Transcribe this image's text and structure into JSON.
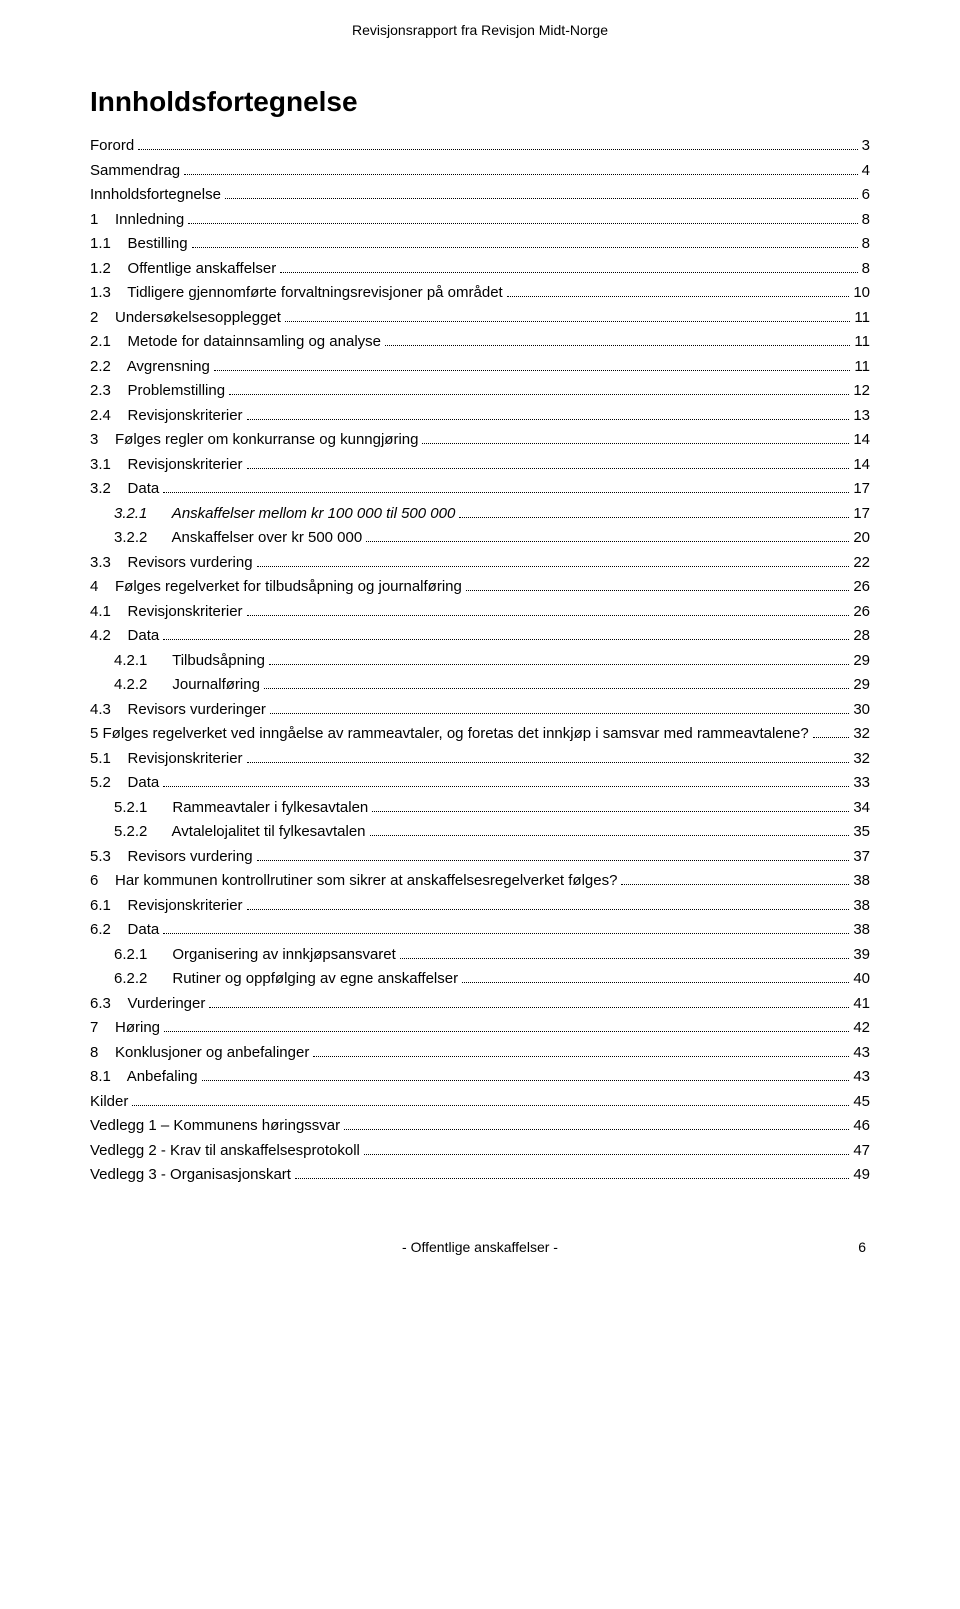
{
  "header": "Revisjonsrapport fra Revisjon Midt-Norge",
  "title": "Innholdsfortegnelse",
  "footer_center": "- Offentlige anskaffelser -",
  "footer_page": "6",
  "toc": [
    {
      "indent": 0,
      "label": "Forord",
      "page": "3"
    },
    {
      "indent": 0,
      "label": "Sammendrag",
      "page": "4"
    },
    {
      "indent": 0,
      "label": "Innholdsfortegnelse",
      "page": "6"
    },
    {
      "indent": 0,
      "label": "1    Innledning",
      "page": "8"
    },
    {
      "indent": 0,
      "label": "1.1    Bestilling",
      "page": "8"
    },
    {
      "indent": 0,
      "label": "1.2    Offentlige anskaffelser",
      "page": "8"
    },
    {
      "indent": 0,
      "label": "1.3    Tidligere gjennomførte forvaltningsrevisjoner på området",
      "page": "10"
    },
    {
      "indent": 0,
      "label": "2    Undersøkelsesopplegget",
      "page": "11"
    },
    {
      "indent": 0,
      "label": "2.1    Metode for datainnsamling og analyse",
      "page": "11"
    },
    {
      "indent": 0,
      "label": "2.2    Avgrensning",
      "page": "11"
    },
    {
      "indent": 0,
      "label": "2.3    Problemstilling",
      "page": "12"
    },
    {
      "indent": 0,
      "label": "2.4    Revisjonskriterier",
      "page": "13"
    },
    {
      "indent": 0,
      "label": "3    Følges regler om konkurranse og kunngjøring",
      "page": "14"
    },
    {
      "indent": 0,
      "label": "3.1    Revisjonskriterier",
      "page": "14"
    },
    {
      "indent": 0,
      "label": "3.2    Data",
      "page": "17"
    },
    {
      "indent": 1,
      "label": "3.2.1      Anskaffelser mellom kr 100 000 til 500 000",
      "page": "17",
      "italic": true
    },
    {
      "indent": 1,
      "label": "3.2.2      Anskaffelser over kr 500 000",
      "page": "20"
    },
    {
      "indent": 0,
      "label": "3.3    Revisors vurdering",
      "page": "22"
    },
    {
      "indent": 0,
      "label": "4    Følges regelverket for tilbudsåpning og journalføring",
      "page": "26"
    },
    {
      "indent": 0,
      "label": "4.1    Revisjonskriterier",
      "page": "26"
    },
    {
      "indent": 0,
      "label": "4.2    Data",
      "page": "28"
    },
    {
      "indent": 1,
      "label": "4.2.1      Tilbudsåpning",
      "page": "29"
    },
    {
      "indent": 1,
      "label": "4.2.2      Journalføring",
      "page": "29"
    },
    {
      "indent": 0,
      "label": "4.3    Revisors vurderinger",
      "page": "30"
    },
    {
      "indent": 0,
      "label": "5    Følges regelverket ved inngåelse av rammeavtaler, og foretas det innkjøp i samsvar med rammeavtalene?",
      "page": "32",
      "wrap": true
    },
    {
      "indent": 0,
      "label": "5.1    Revisjonskriterier",
      "page": "32"
    },
    {
      "indent": 0,
      "label": "5.2    Data",
      "page": "33"
    },
    {
      "indent": 1,
      "label": "5.2.1      Rammeavtaler i fylkesavtalen",
      "page": "34"
    },
    {
      "indent": 1,
      "label": "5.2.2      Avtalelojalitet til fylkesavtalen",
      "page": "35"
    },
    {
      "indent": 0,
      "label": "5.3    Revisors vurdering",
      "page": "37"
    },
    {
      "indent": 0,
      "label": "6    Har kommunen kontrollrutiner som sikrer at anskaffelsesregelverket følges?",
      "page": "38"
    },
    {
      "indent": 0,
      "label": "6.1    Revisjonskriterier",
      "page": "38"
    },
    {
      "indent": 0,
      "label": "6.2    Data",
      "page": "38"
    },
    {
      "indent": 1,
      "label": "6.2.1      Organisering av innkjøpsansvaret",
      "page": "39"
    },
    {
      "indent": 1,
      "label": "6.2.2      Rutiner og oppfølging av egne anskaffelser",
      "page": "40"
    },
    {
      "indent": 0,
      "label": "6.3    Vurderinger",
      "page": "41"
    },
    {
      "indent": 0,
      "label": "7    Høring",
      "page": "42"
    },
    {
      "indent": 0,
      "label": "8    Konklusjoner og anbefalinger",
      "page": "43"
    },
    {
      "indent": 0,
      "label": "8.1    Anbefaling",
      "page": "43"
    },
    {
      "indent": 0,
      "label": "Kilder",
      "page": "45"
    },
    {
      "indent": 0,
      "label": "Vedlegg 1 – Kommunens høringssvar",
      "page": "46"
    },
    {
      "indent": 0,
      "label": "Vedlegg 2 - Krav til anskaffelsesprotokoll",
      "page": "47"
    },
    {
      "indent": 0,
      "label": "Vedlegg 3 - Organisasjonskart",
      "page": "49"
    }
  ]
}
